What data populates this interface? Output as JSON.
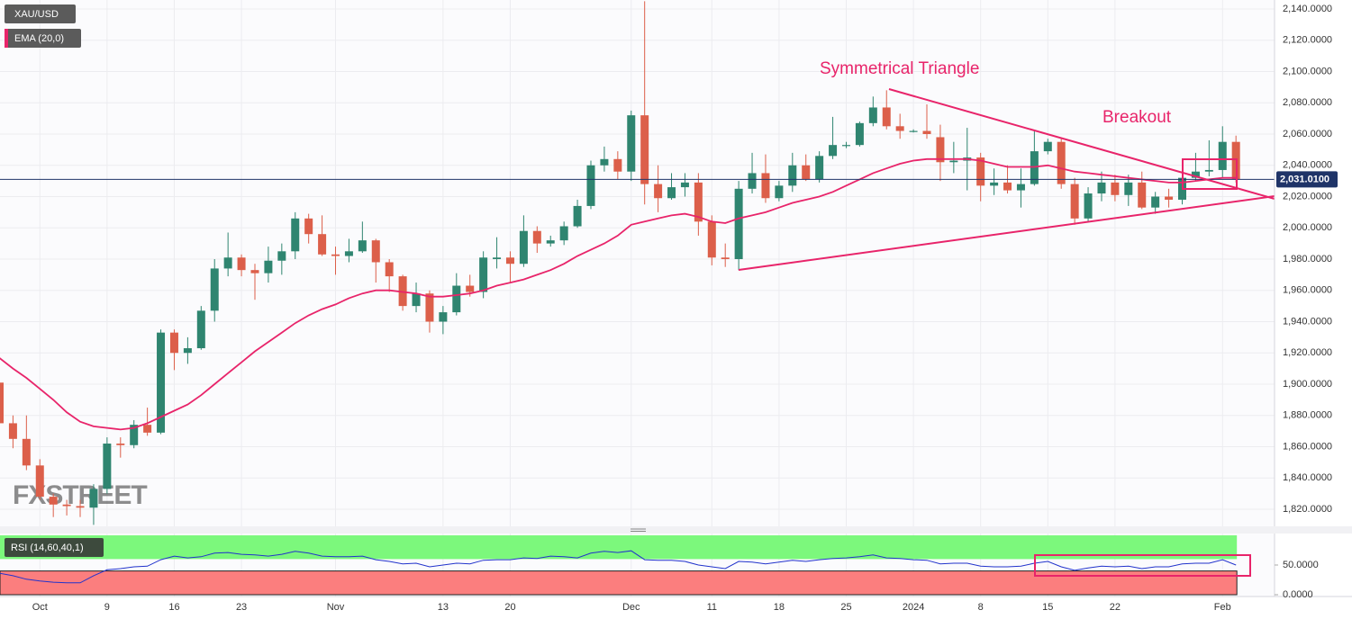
{
  "chart_data": [
    {
      "type": "candlestick",
      "symbol": "XAU/USD",
      "watermark": "FXSTREET",
      "annotations": [
        "Symmetrical Triangle",
        "Breakout"
      ],
      "up_color": "#2f8570",
      "down_color": "#dc5f4a",
      "grid": true,
      "xlim": [
        0.0335,
        94.87
      ],
      "ylim": [
        1809.06,
        2145.76
      ],
      "xticks": [
        {
          "value": 3,
          "label": "Oct"
        },
        {
          "value": 8,
          "label": "9"
        },
        {
          "value": 13,
          "label": "16"
        },
        {
          "value": 18,
          "label": "23"
        },
        {
          "value": 25,
          "label": "Nov"
        },
        {
          "value": 33,
          "label": "13"
        },
        {
          "value": 38,
          "label": "20"
        },
        {
          "value": 47,
          "label": "Dec"
        },
        {
          "value": 53,
          "label": "11"
        },
        {
          "value": 58,
          "label": "18"
        },
        {
          "value": 63,
          "label": "25"
        },
        {
          "value": 68,
          "label": "2024"
        },
        {
          "value": 73,
          "label": "8"
        },
        {
          "value": 78,
          "label": "15"
        },
        {
          "value": 83,
          "label": "22"
        },
        {
          "value": 91,
          "label": "Feb"
        }
      ],
      "yticks": [
        {
          "value": 1820,
          "label": "1,820.0000"
        },
        {
          "value": 1840,
          "label": "1,840.0000"
        },
        {
          "value": 1860,
          "label": "1,860.0000"
        },
        {
          "value": 1880,
          "label": "1,880.0000"
        },
        {
          "value": 1900,
          "label": "1,900.0000"
        },
        {
          "value": 1920,
          "label": "1,920.0000"
        },
        {
          "value": 1940,
          "label": "1,940.0000"
        },
        {
          "value": 1960,
          "label": "1,960.0000"
        },
        {
          "value": 1980,
          "label": "1,980.0000"
        },
        {
          "value": 2000,
          "label": "2,000.0000"
        },
        {
          "value": 2020,
          "label": "2,020.0000"
        },
        {
          "value": 2040,
          "label": "2,040.0000"
        },
        {
          "value": 2060,
          "label": "2,060.0000"
        },
        {
          "value": 2080,
          "label": "2,080.0000"
        },
        {
          "value": 2100,
          "label": "2,100.0000"
        },
        {
          "value": 2120,
          "label": "2,120.0000"
        },
        {
          "value": 2140,
          "label": "2,140.0000"
        }
      ],
      "last_price": {
        "value": 2031.01,
        "label": "2,031.0100",
        "color": "#1f3468"
      },
      "open": [
        1901,
        1875,
        1865,
        1848,
        1828,
        1823,
        1822,
        1821,
        1833,
        1862,
        1861,
        1874,
        1869,
        1933,
        1920,
        1923,
        1947,
        1974,
        1981,
        1973,
        1971,
        1979,
        1985,
        2006,
        1996,
        1983,
        1982,
        1985,
        1992,
        1978,
        1969,
        1950,
        1958,
        1940,
        1946,
        1963,
        1959,
        1980,
        1981,
        1977,
        1998,
        1990,
        1992,
        2001,
        2014,
        2040,
        2044,
        2036,
        2072,
        2028,
        2019,
        2026,
        2029,
        2004,
        1981,
        1980,
        2025,
        2035,
        2019,
        2027,
        2040,
        2031,
        2046,
        2053,
        2053,
        2067,
        2077,
        2065,
        2062,
        2062,
        2058,
        2042,
        2043,
        2045,
        2027,
        2029,
        2024,
        2028,
        2049,
        2055,
        2028,
        2006,
        2022,
        2029,
        2021,
        2029,
        2013,
        2020,
        2018,
        2032,
        2036,
        2037,
        2055
      ],
      "high": [
        1903,
        1880,
        1880,
        1852,
        1830,
        1826,
        1826,
        1836,
        1866,
        1866,
        1877,
        1885,
        1935,
        1935,
        1930,
        1950,
        1980,
        1997,
        1983,
        1977,
        1988,
        1990,
        2010,
        2009,
        2008,
        1988,
        1993,
        2004,
        1993,
        1980,
        1970,
        1965,
        1960,
        1950,
        1971,
        1970,
        1985,
        1994,
        1985,
        2008,
        2001,
        1995,
        2004,
        2018,
        2043,
        2052,
        2049,
        2075,
        2145,
        2040,
        2035,
        2035,
        2035,
        2008,
        1990,
        2030,
        2048,
        2047,
        2030,
        2048,
        2047,
        2049,
        2071,
        2055,
        2068,
        2084,
        2088,
        2073,
        2063,
        2079,
        2066,
        2055,
        2064,
        2048,
        2038,
        2040,
        2038,
        2062,
        2057,
        2057,
        2032,
        2026,
        2036,
        2034,
        2034,
        2036,
        2023,
        2025,
        2040,
        2048,
        2056,
        2065,
        2059
      ],
      "low": [
        1870,
        1859,
        1845,
        1826,
        1815,
        1816,
        1815,
        1810,
        1830,
        1853,
        1859,
        1867,
        1868,
        1909,
        1913,
        1922,
        1940,
        1969,
        1969,
        1954,
        1965,
        1970,
        1980,
        1990,
        1982,
        1970,
        1978,
        1984,
        1965,
        1959,
        1947,
        1946,
        1933,
        1932,
        1944,
        1956,
        1955,
        1974,
        1965,
        1975,
        1984,
        1988,
        1989,
        2000,
        2012,
        2036,
        2031,
        2030,
        2015,
        2010,
        2018,
        2020,
        1995,
        1976,
        1975,
        1973,
        2022,
        2016,
        2017,
        2023,
        2030,
        2029,
        2044,
        2051,
        2052,
        2065,
        2063,
        2057,
        2061,
        2057,
        2030,
        2035,
        2024,
        2017,
        2021,
        2022,
        2013,
        2027,
        2047,
        2025,
        2002,
        2004,
        2017,
        2017,
        2014,
        2012,
        2009,
        2013,
        2015,
        2030,
        2033,
        2032,
        2029
      ],
      "close": [
        1875,
        1865,
        1848,
        1828,
        1823,
        1822,
        1821,
        1833,
        1862,
        1861,
        1874,
        1869,
        1933,
        1920,
        1923,
        1947,
        1974,
        1981,
        1973,
        1971,
        1979,
        1985,
        2006,
        1996,
        1983,
        1982,
        1985,
        1992,
        1978,
        1969,
        1950,
        1958,
        1940,
        1946,
        1963,
        1959,
        1981,
        1981,
        1977,
        1998,
        1990,
        1992,
        2001,
        2014,
        2040,
        2044,
        2036,
        2072,
        2028,
        2019,
        2026,
        2029,
        2004,
        1981,
        1980,
        2025,
        2035,
        2019,
        2027,
        2040,
        2031,
        2046,
        2053,
        2053,
        2067,
        2077,
        2065,
        2062,
        2062,
        2060,
        2042,
        2043,
        2045,
        2027,
        2029,
        2024,
        2028,
        2049,
        2055,
        2028,
        2006,
        2022,
        2029,
        2021,
        2029,
        2013,
        2020,
        2018,
        2032,
        2036,
        2037,
        2055,
        2031
      ],
      "ema": {
        "name": "EMA (20,0)",
        "color": "#e8246a",
        "values": [
          1916.7,
          1910,
          1904,
          1897,
          1890,
          1882,
          1876,
          1873,
          1872,
          1871,
          1872,
          1875,
          1879,
          1883,
          1887,
          1893,
          1900,
          1907,
          1914,
          1921,
          1927,
          1933,
          1939,
          1944,
          1948,
          1951,
          1955,
          1958,
          1960,
          1960,
          1959,
          1958,
          1956,
          1956,
          1957,
          1958,
          1960,
          1963,
          1965,
          1967,
          1970,
          1973,
          1977,
          1982,
          1986,
          1990,
          1995,
          2002,
          2004,
          2006,
          2008,
          2009,
          2007,
          2004,
          2003,
          2006,
          2008,
          2010,
          2013,
          2016,
          2018,
          2020,
          2023,
          2027,
          2031,
          2035,
          2038,
          2041,
          2043,
          2044,
          2044,
          2044,
          2044,
          2043,
          2041,
          2039,
          2039,
          2039,
          2040,
          2038,
          2036,
          2035,
          2034,
          2033,
          2032,
          2031,
          2030,
          2029,
          2029,
          2030,
          2031,
          2032,
          2032
        ]
      }
    },
    {
      "type": "line",
      "title": "RSI (14,60,40,1)",
      "color": "#2233cc",
      "ylim": [
        -3.03,
        103.03
      ],
      "yticks": [
        {
          "value": 0,
          "label": "0.0000"
        },
        {
          "value": 50,
          "label": "50.0000"
        }
      ],
      "upper_level": 60,
      "lower_level": 40,
      "upper_color": "#7cf87c",
      "lower_color": "#fb7e7e",
      "values": [
        36,
        32,
        26,
        23,
        21,
        20,
        20,
        32,
        42,
        44,
        47,
        48,
        59,
        65,
        62,
        64,
        70,
        71,
        68,
        67,
        65,
        68,
        73,
        70,
        65,
        64,
        64,
        65,
        59,
        56,
        52,
        53,
        47,
        50,
        53,
        52,
        58,
        59,
        59,
        62,
        61,
        65,
        64,
        62,
        70,
        73,
        71,
        74,
        59,
        58,
        58,
        56,
        50,
        47,
        44,
        56,
        55,
        52,
        55,
        58,
        56,
        59,
        61,
        62,
        64,
        67,
        62,
        61,
        59,
        58,
        52,
        53,
        53,
        48,
        47,
        47,
        48,
        53,
        56,
        47,
        41,
        45,
        48,
        47,
        48,
        44,
        47,
        47,
        52,
        53,
        53,
        59,
        50
      ]
    }
  ]
}
